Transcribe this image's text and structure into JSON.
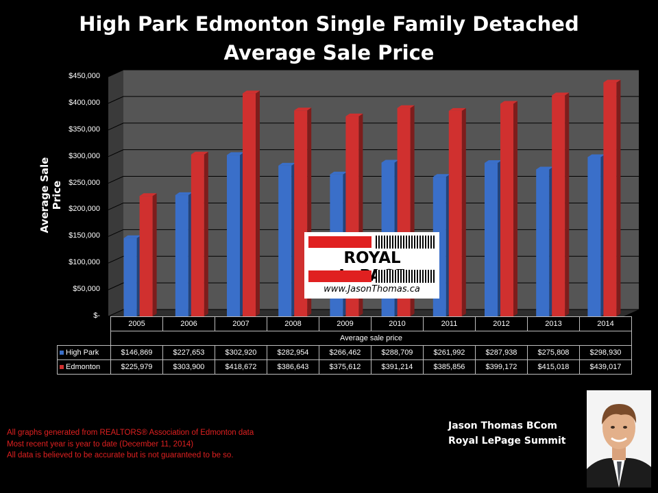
{
  "header": {
    "title_line1": "High Park Edmonton Single Family Detached",
    "title_line2": "Average Sale Price"
  },
  "chart_data": {
    "type": "bar",
    "categories": [
      "2005",
      "2006",
      "2007",
      "2008",
      "2009",
      "2010",
      "2011",
      "2012",
      "2013",
      "2014"
    ],
    "series": [
      {
        "name": "High Park",
        "color": "#3a6fc9",
        "values": [
          146869,
          227653,
          302920,
          282954,
          266462,
          288709,
          261992,
          287938,
          275808,
          298930
        ],
        "labels": [
          "$146,869",
          "$227,653",
          "$302,920",
          "$282,954",
          "$266,462",
          "$288,709",
          "$261,992",
          "$287,938",
          "$275,808",
          "$298,930"
        ]
      },
      {
        "name": "Edmonton",
        "color": "#d0302f",
        "values": [
          225979,
          303900,
          418672,
          386643,
          375612,
          391214,
          385856,
          399172,
          415018,
          439017
        ],
        "labels": [
          "$225,979",
          "$303,900",
          "$418,672",
          "$386,643",
          "$375,612",
          "$391,214",
          "$385,856",
          "$399,172",
          "$415,018",
          "$439,017"
        ]
      }
    ],
    "xlabel": "Average sale price",
    "ylabel": "Average Sale Price",
    "ylim": [
      0,
      450000
    ],
    "yticks": [
      {
        "value": 0,
        "label": "$-"
      },
      {
        "value": 50000,
        "label": "$50,000"
      },
      {
        "value": 100000,
        "label": "$100,000"
      },
      {
        "value": 150000,
        "label": "$150,000"
      },
      {
        "value": 200000,
        "label": "$200,000"
      },
      {
        "value": 250000,
        "label": "$250,000"
      },
      {
        "value": 300000,
        "label": "$300,000"
      },
      {
        "value": 350000,
        "label": "$350,000"
      },
      {
        "value": 400000,
        "label": "$400,000"
      },
      {
        "value": 450000,
        "label": "$450,000"
      }
    ],
    "grid": true,
    "legend": "data table"
  },
  "logo": {
    "brand": "ROYAL LePAGE",
    "url": "www.JasonThomas.ca"
  },
  "footer": {
    "line1": "All graphs generated from REALTORS® Association of Edmonton data",
    "line2": "Most recent year is year to date (December 11, 2014)",
    "line3": "All data is believed to be accurate but is not guaranteed to be so."
  },
  "agent": {
    "name": "Jason Thomas BCom",
    "company": "Royal LePage Summit"
  }
}
